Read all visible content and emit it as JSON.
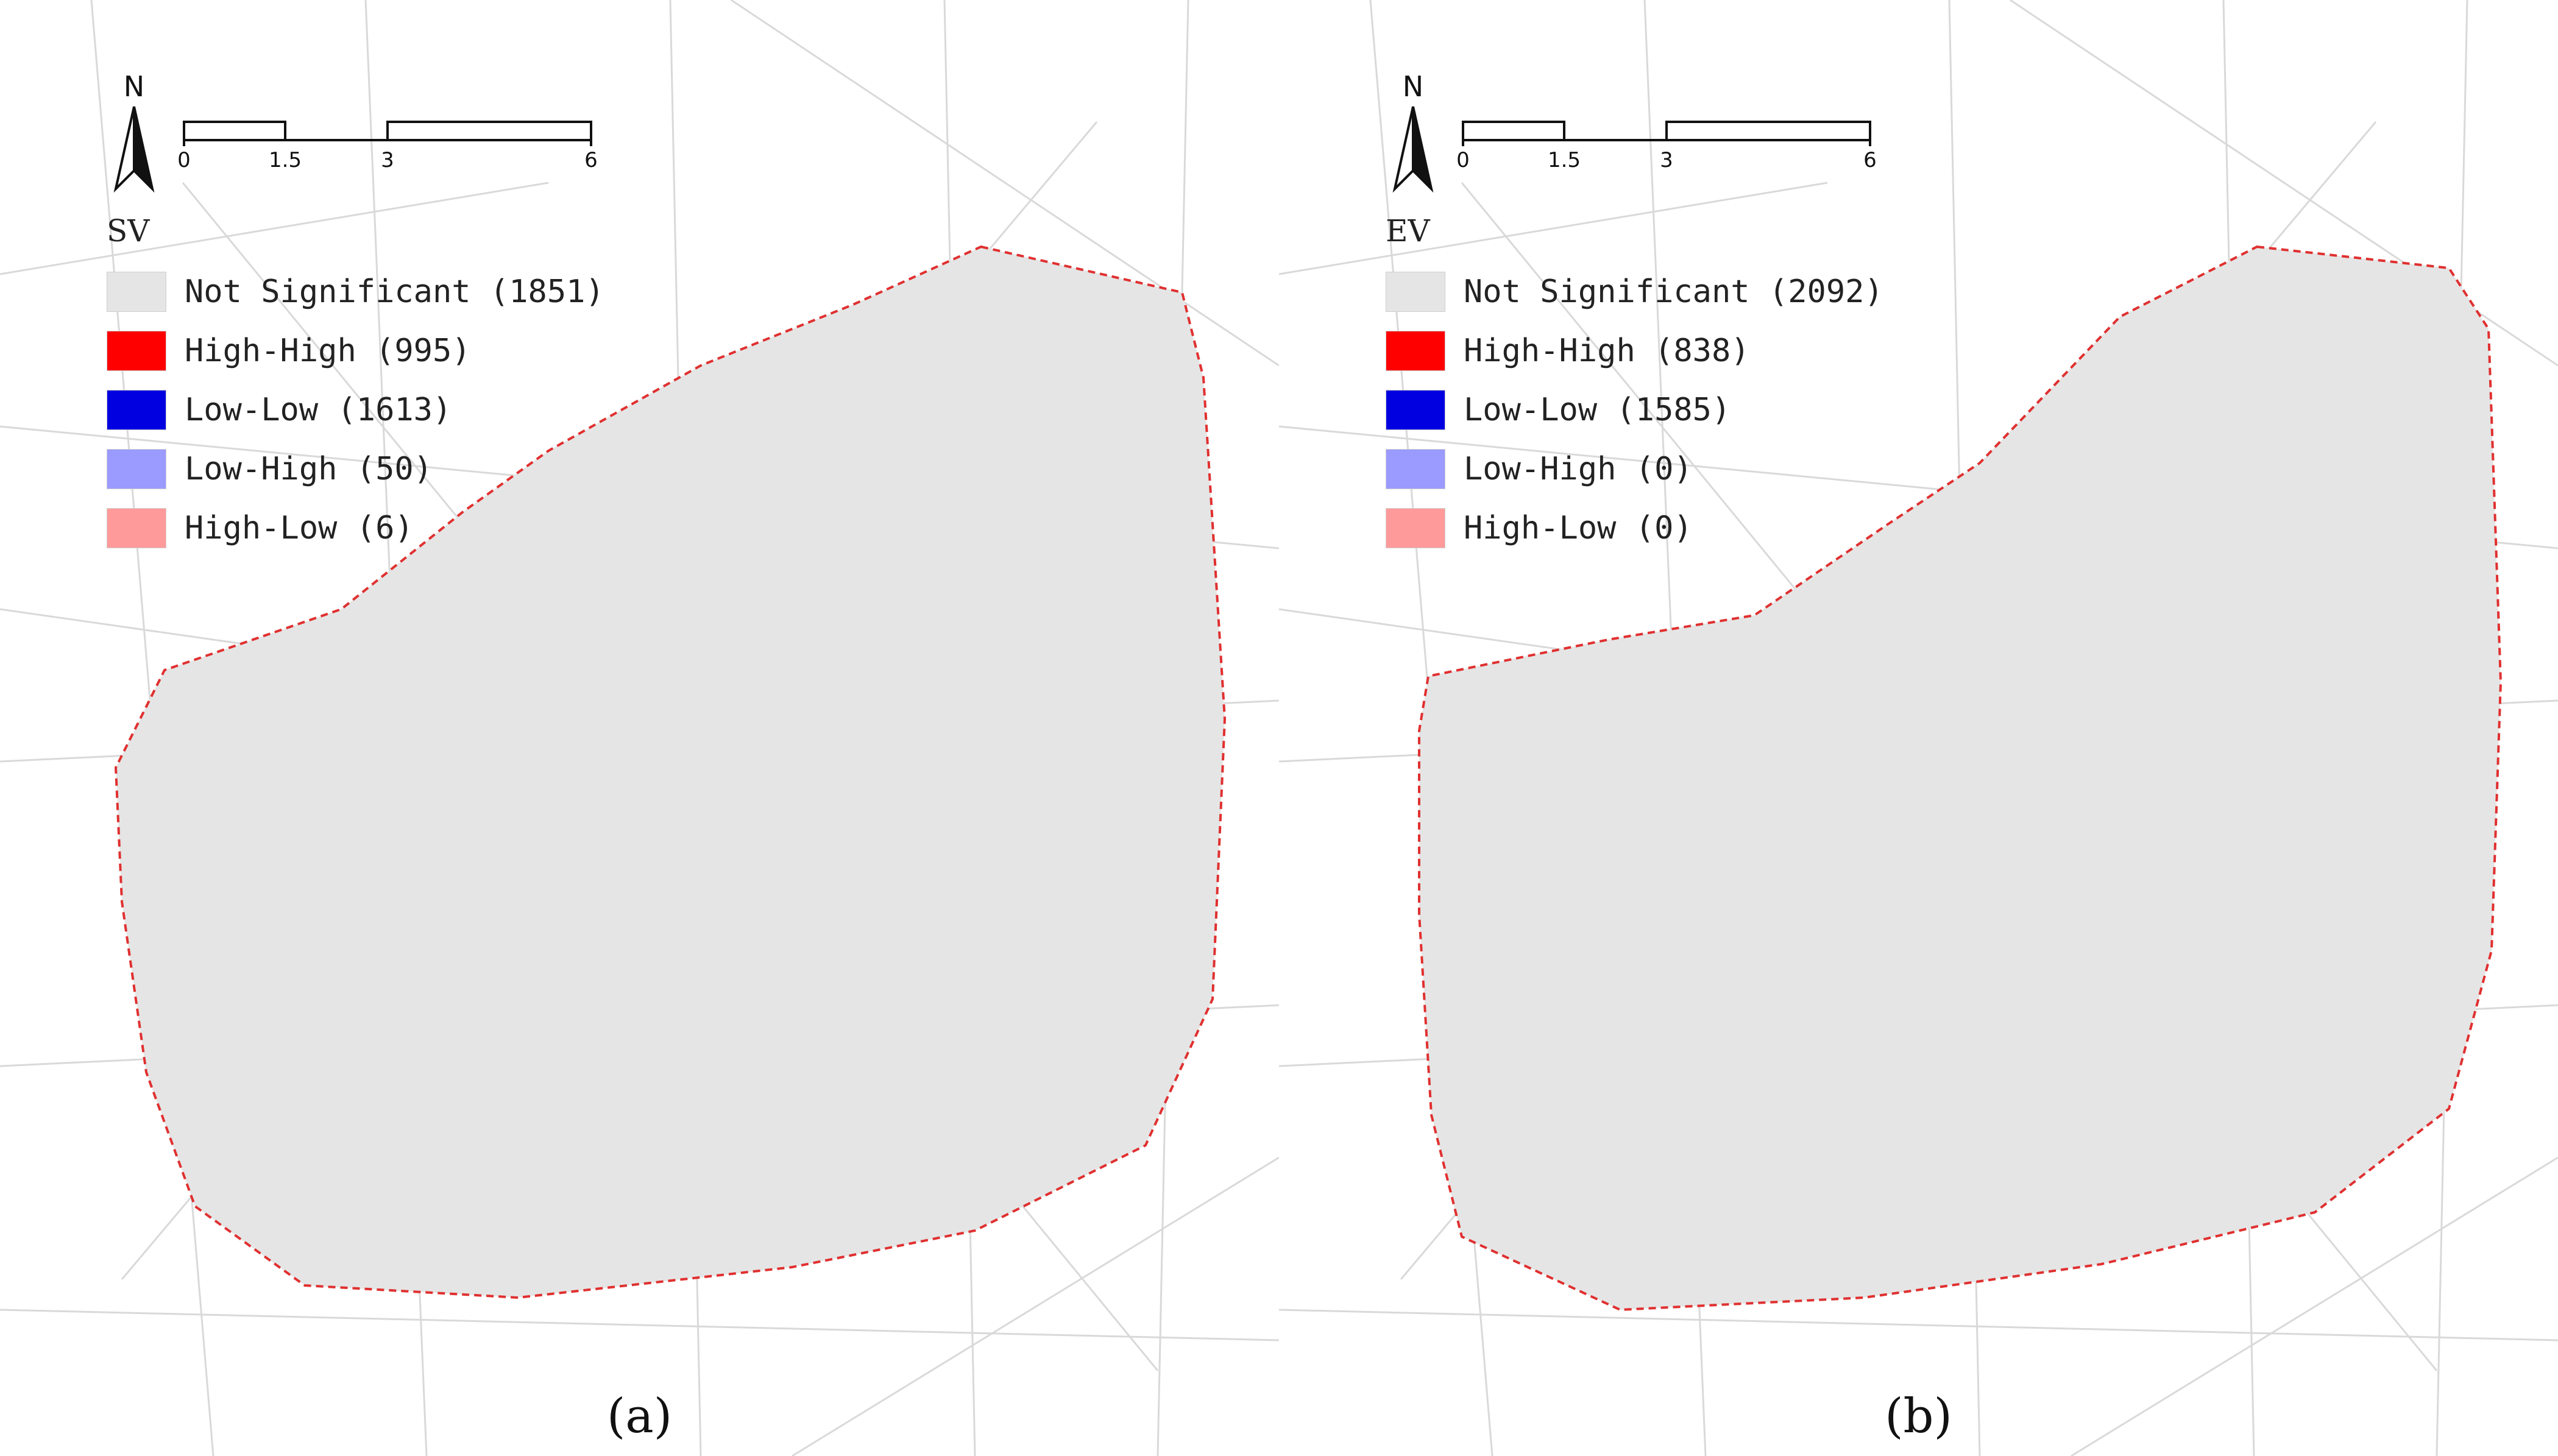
{
  "colors": {
    "not_significant": "#e5e5e5",
    "high_high": "#ff0000",
    "low_low": "#0000e0",
    "low_high": "#9a9aff",
    "high_low": "#ff9a9a",
    "boundary": "#e03030",
    "roads": "#d9d9d9"
  },
  "icons": {
    "north_arrow": "north-arrow-icon"
  },
  "scale_bar": {
    "ticks": [
      "0",
      "1.5",
      "3",
      "6"
    ],
    "tick_values": [
      0,
      1.5,
      3,
      6
    ]
  },
  "panels": [
    {
      "caption": "(a)",
      "north_label": "N",
      "legend": {
        "title": "SV",
        "items": [
          {
            "key": "not_significant",
            "label": "Not Significant (1851)",
            "count": 1851
          },
          {
            "key": "high_high",
            "label": "High-High (995)",
            "count": 995
          },
          {
            "key": "low_low",
            "label": "Low-Low (1613)",
            "count": 1613
          },
          {
            "key": "low_high",
            "label": "Low-High (50)",
            "count": 50
          },
          {
            "key": "high_low",
            "label": "High-Low (6)",
            "count": 6
          }
        ]
      }
    },
    {
      "caption": "(b)",
      "north_label": "N",
      "legend": {
        "title": "EV",
        "items": [
          {
            "key": "not_significant",
            "label": "Not Significant (2092)",
            "count": 2092
          },
          {
            "key": "high_high",
            "label": "High-High (838)",
            "count": 838
          },
          {
            "key": "low_low",
            "label": "Low-Low (1585)",
            "count": 1585
          },
          {
            "key": "low_high",
            "label": "Low-High (0)",
            "count": 0
          },
          {
            "key": "high_low",
            "label": "High-Low (0)",
            "count": 0
          }
        ]
      }
    }
  ]
}
